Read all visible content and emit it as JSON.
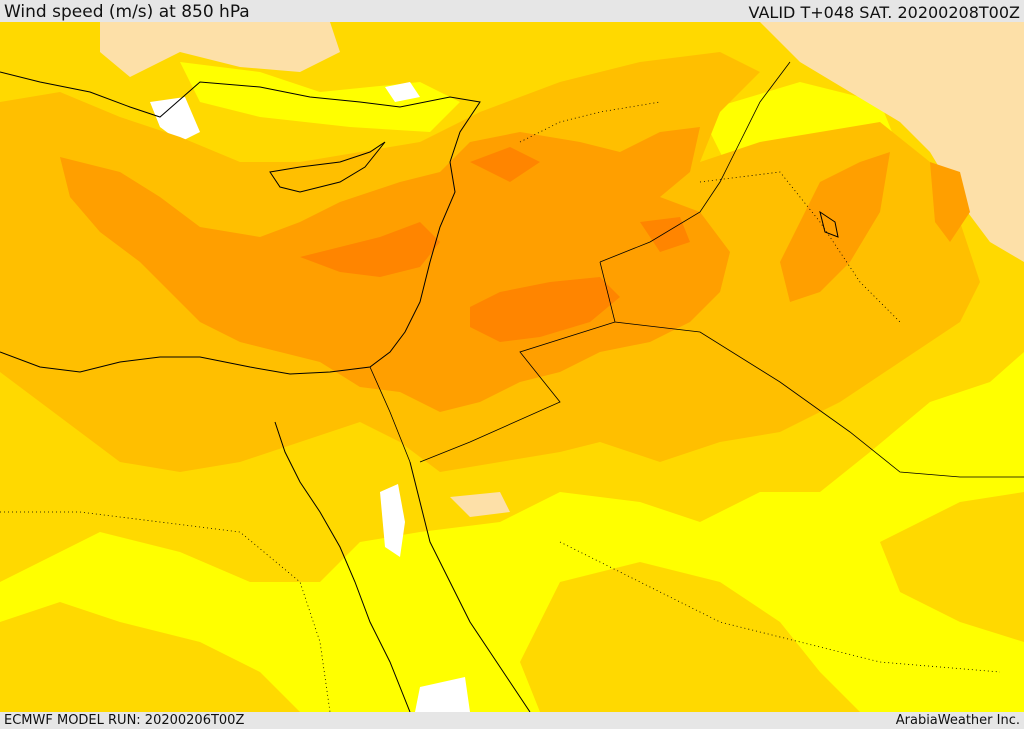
{
  "header": {
    "title": "Wind speed (m/s) at 850 hPa",
    "valid": "VALID T+048 SAT. 20200208T00Z"
  },
  "footer": {
    "model_run": "ECMWF MODEL RUN: 20200206T00Z",
    "credit": "ArabiaWeather Inc."
  },
  "colors": {
    "calm": "#ffffff",
    "low": "#fde0a8",
    "light": "#ffff00",
    "moderate": "#ffd900",
    "fresh": "#ffbf00",
    "strong": "#ff9f00",
    "very_strong": "#ff8500",
    "coastline": "#000000",
    "border": "#000000"
  }
}
